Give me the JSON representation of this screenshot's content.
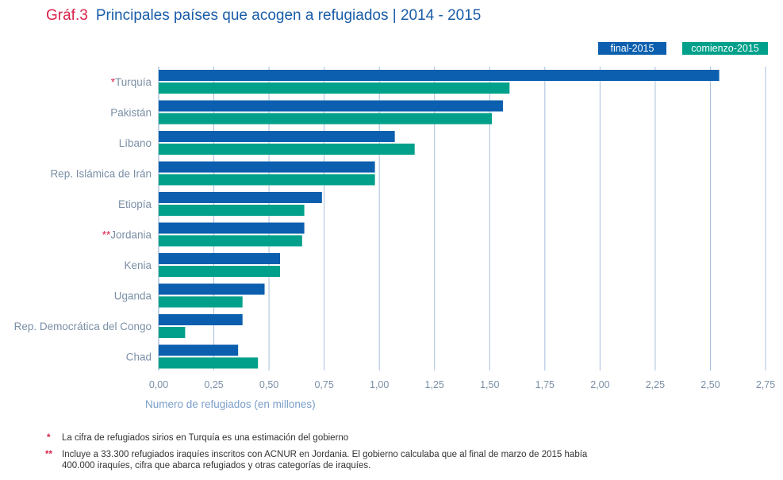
{
  "header": {
    "figure_number": "Gráf.3",
    "title": "Principales países que acogen a refugiados | 2014 - 2015"
  },
  "colors": {
    "final": "#0b5fae",
    "comienzo": "#00a08a",
    "gridline": "#a7bfdc",
    "accent_red": "#d8234a"
  },
  "chart_data": {
    "type": "bar",
    "orientation": "horizontal",
    "title": "Principales países que acogen a refugiados | 2014 - 2015",
    "xlabel": "Numero de refugiados (en millones)",
    "ylabel": "",
    "xlim": [
      0,
      2.75
    ],
    "x_ticks": [
      "0,00",
      "0,25",
      "0,50",
      "0,75",
      "1,00",
      "1,25",
      "1,50",
      "1,75",
      "2,00",
      "2,25",
      "2,50",
      "2,75"
    ],
    "grid": "vertical",
    "legend_position": "top-right",
    "categories": [
      {
        "star": "*",
        "name": "Turquía"
      },
      {
        "star": "",
        "name": "Pakistán"
      },
      {
        "star": "",
        "name": "Líbano"
      },
      {
        "star": "",
        "name": "Rep. Islámica de Irán"
      },
      {
        "star": "",
        "name": "Etiopía"
      },
      {
        "star": "**",
        "name": "Jordania"
      },
      {
        "star": "",
        "name": "Kenia"
      },
      {
        "star": "",
        "name": "Uganda"
      },
      {
        "star": "",
        "name": "Rep. Democrática del Congo"
      },
      {
        "star": "",
        "name": "Chad"
      }
    ],
    "series": [
      {
        "name": "final-2015",
        "values": [
          2.54,
          1.56,
          1.07,
          0.98,
          0.74,
          0.66,
          0.55,
          0.48,
          0.38,
          0.36
        ]
      },
      {
        "name": "comienzo-2015",
        "values": [
          1.59,
          1.51,
          1.16,
          0.98,
          0.66,
          0.65,
          0.55,
          0.38,
          0.12,
          0.45
        ]
      }
    ]
  },
  "footnotes": [
    {
      "mark": "*",
      "text": "La cifra de refugiados sirios en Turquía es una estimación del gobierno"
    },
    {
      "mark": "**",
      "line1": "Incluye a 33.300 refugiados iraquíes inscritos con ACNUR en Jordania. El gobierno calculaba que al final de marzo de 2015 había",
      "line2": "400.000 iraquíes, cifra que abarca refugiados y otras categorías de iraquíes."
    }
  ]
}
